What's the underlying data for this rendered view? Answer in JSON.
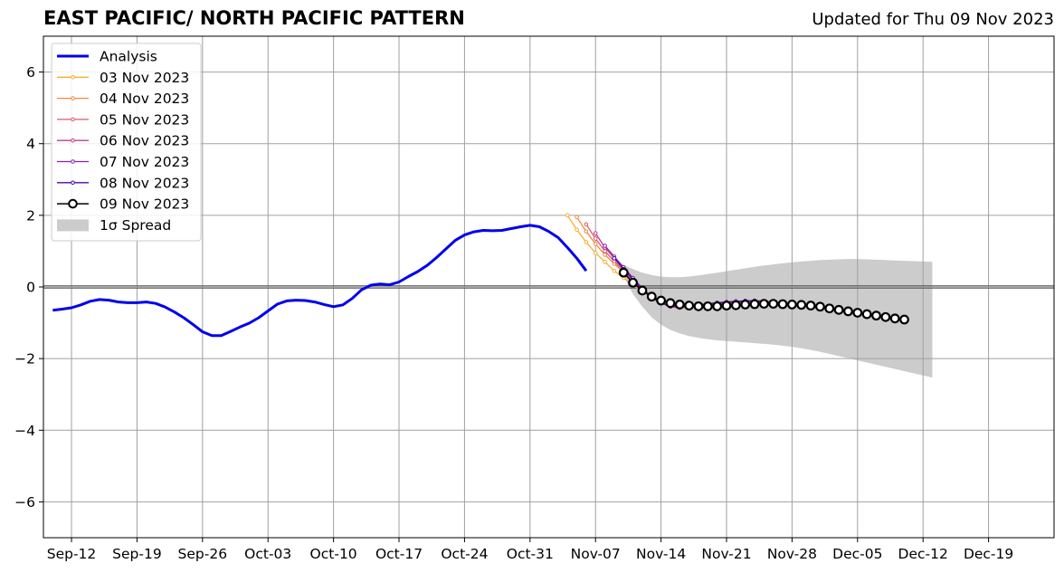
{
  "header": {
    "title": "EAST PACIFIC/ NORTH PACIFIC PATTERN",
    "updated": "Updated for Thu 09 Nov 2023"
  },
  "chart_data": {
    "type": "line",
    "title": "EAST PACIFIC/ NORTH PACIFIC PATTERN",
    "subtitle": "Updated for Thu 09 Nov 2023",
    "xlabel": "",
    "ylabel": "",
    "x_start": "2023-09-09",
    "x_end": "2023-12-26",
    "xticks": [
      {
        "date": "2023-09-12",
        "label": "Sep-12"
      },
      {
        "date": "2023-09-19",
        "label": "Sep-19"
      },
      {
        "date": "2023-09-26",
        "label": "Sep-26"
      },
      {
        "date": "2023-10-03",
        "label": "Oct-03"
      },
      {
        "date": "2023-10-10",
        "label": "Oct-10"
      },
      {
        "date": "2023-10-17",
        "label": "Oct-17"
      },
      {
        "date": "2023-10-24",
        "label": "Oct-24"
      },
      {
        "date": "2023-10-31",
        "label": "Oct-31"
      },
      {
        "date": "2023-11-07",
        "label": "Nov-07"
      },
      {
        "date": "2023-11-14",
        "label": "Nov-14"
      },
      {
        "date": "2023-11-21",
        "label": "Nov-21"
      },
      {
        "date": "2023-11-28",
        "label": "Nov-28"
      },
      {
        "date": "2023-12-05",
        "label": "Dec-05"
      },
      {
        "date": "2023-12-12",
        "label": "Dec-12"
      },
      {
        "date": "2023-12-19",
        "label": "Dec-19"
      }
    ],
    "ylim": [
      -7,
      7
    ],
    "yticks": [
      {
        "value": 6,
        "label": "6"
      },
      {
        "value": 4,
        "label": "4"
      },
      {
        "value": 2,
        "label": "2"
      },
      {
        "value": 0,
        "label": "0"
      },
      {
        "value": -2,
        "label": "−2"
      },
      {
        "value": -4,
        "label": "−4"
      },
      {
        "value": -6,
        "label": "−6"
      }
    ],
    "grid": true,
    "zero_line": true,
    "legend_position": "top-left",
    "series": [
      {
        "name": "Analysis",
        "color": "#0000ee",
        "marker": "none",
        "style": "thick",
        "start": "2023-09-10",
        "values": [
          -0.65,
          -0.62,
          -0.58,
          -0.5,
          -0.4,
          -0.35,
          -0.37,
          -0.42,
          -0.44,
          -0.44,
          -0.42,
          -0.46,
          -0.56,
          -0.7,
          -0.86,
          -1.05,
          -1.25,
          -1.36,
          -1.36,
          -1.24,
          -1.12,
          -1.01,
          -0.86,
          -0.67,
          -0.48,
          -0.39,
          -0.37,
          -0.38,
          -0.42,
          -0.49,
          -0.55,
          -0.5,
          -0.32,
          -0.08,
          0.05,
          0.08,
          0.06,
          0.14,
          0.29,
          0.43,
          0.6,
          0.82,
          1.06,
          1.3,
          1.45,
          1.54,
          1.58,
          1.57,
          1.58,
          1.63,
          1.68,
          1.72,
          1.68,
          1.55,
          1.38,
          1.1,
          0.8,
          0.45
        ]
      },
      {
        "name": "03 Nov 2023",
        "color": "#f5b02e",
        "marker": "dot",
        "style": "thin",
        "start": "2023-11-04",
        "values": [
          2.0,
          1.6,
          1.25,
          0.95,
          0.7,
          0.45,
          0.25,
          0.05,
          -0.12,
          -0.3,
          -0.45,
          -0.55,
          -0.58,
          -0.56,
          -0.53,
          -0.5,
          -0.48,
          -0.46,
          -0.44,
          -0.42,
          -0.41,
          -0.4,
          -0.42,
          -0.45,
          -0.48
        ]
      },
      {
        "name": "04 Nov 2023",
        "color": "#f08a3c",
        "marker": "dot",
        "style": "thin",
        "start": "2023-11-05",
        "values": [
          1.95,
          1.55,
          1.2,
          0.9,
          0.65,
          0.4,
          0.15,
          -0.08,
          -0.28,
          -0.45,
          -0.55,
          -0.58,
          -0.55,
          -0.52,
          -0.5,
          -0.48,
          -0.46,
          -0.44,
          -0.42,
          -0.41,
          -0.4,
          -0.42,
          -0.45,
          -0.48
        ]
      },
      {
        "name": "05 Nov 2023",
        "color": "#de5a6e",
        "marker": "dot",
        "style": "thin",
        "start": "2023-11-06",
        "values": [
          1.75,
          1.35,
          1.0,
          0.72,
          0.45,
          0.2,
          -0.05,
          -0.27,
          -0.45,
          -0.55,
          -0.58,
          -0.55,
          -0.52,
          -0.49,
          -0.47,
          -0.45,
          -0.43,
          -0.41,
          -0.4,
          -0.4,
          -0.42,
          -0.45,
          -0.48
        ]
      },
      {
        "name": "06 Nov 2023",
        "color": "#bb3c97",
        "marker": "dot",
        "style": "thin",
        "start": "2023-11-07",
        "values": [
          1.5,
          1.1,
          0.8,
          0.5,
          0.22,
          -0.05,
          -0.28,
          -0.45,
          -0.55,
          -0.57,
          -0.55,
          -0.52,
          -0.49,
          -0.46,
          -0.44,
          -0.42,
          -0.4,
          -0.39,
          -0.4,
          -0.42,
          -0.45,
          -0.48
        ]
      },
      {
        "name": "07 Nov 2023",
        "color": "#8e1eac",
        "marker": "dot",
        "style": "thin",
        "start": "2023-11-08",
        "values": [
          1.15,
          0.85,
          0.55,
          0.25,
          -0.03,
          -0.27,
          -0.45,
          -0.54,
          -0.56,
          -0.54,
          -0.51,
          -0.48,
          -0.45,
          -0.43,
          -0.41,
          -0.39,
          -0.38,
          -0.4,
          -0.43,
          -0.46,
          -0.49
        ]
      },
      {
        "name": "08 Nov 2023",
        "color": "#4a0c9c",
        "marker": "dot",
        "style": "thin",
        "start": "2023-11-09",
        "values": [
          0.8,
          0.5,
          0.2,
          -0.08,
          -0.3,
          -0.45,
          -0.52,
          -0.54,
          -0.52,
          -0.5,
          -0.47,
          -0.44,
          -0.42,
          -0.4,
          -0.39,
          -0.39,
          -0.41,
          -0.44,
          -0.47
        ]
      },
      {
        "name": "09 Nov 2023",
        "color": "#000000",
        "marker": "circle",
        "style": "forecast",
        "start": "2023-11-10",
        "values": [
          0.4,
          0.12,
          -0.1,
          -0.27,
          -0.38,
          -0.45,
          -0.49,
          -0.52,
          -0.54,
          -0.54,
          -0.54,
          -0.52,
          -0.51,
          -0.49,
          -0.48,
          -0.47,
          -0.47,
          -0.48,
          -0.49,
          -0.5,
          -0.52,
          -0.55,
          -0.6,
          -0.64,
          -0.68,
          -0.72,
          -0.76,
          -0.8,
          -0.84,
          -0.88,
          -0.91
        ]
      }
    ],
    "spread": {
      "name": "1σ Spread",
      "color": "#cccccc",
      "start": "2023-11-09",
      "upper": [
        0.7,
        0.62,
        0.5,
        0.4,
        0.33,
        0.29,
        0.27,
        0.27,
        0.29,
        0.32,
        0.36,
        0.4,
        0.44,
        0.48,
        0.52,
        0.56,
        0.6,
        0.63,
        0.66,
        0.69,
        0.71,
        0.73,
        0.75,
        0.76,
        0.77,
        0.78,
        0.78,
        0.77,
        0.76,
        0.75,
        0.74,
        0.73,
        0.72,
        0.71,
        0.7
      ],
      "lower": [
        0.7,
        0.3,
        -0.2,
        -0.55,
        -0.85,
        -1.05,
        -1.2,
        -1.3,
        -1.37,
        -1.42,
        -1.46,
        -1.49,
        -1.51,
        -1.53,
        -1.55,
        -1.57,
        -1.59,
        -1.61,
        -1.64,
        -1.67,
        -1.71,
        -1.76,
        -1.81,
        -1.87,
        -1.93,
        -1.99,
        -2.05,
        -2.11,
        -2.17,
        -2.23,
        -2.29,
        -2.35,
        -2.41,
        -2.47,
        -2.53
      ]
    }
  }
}
